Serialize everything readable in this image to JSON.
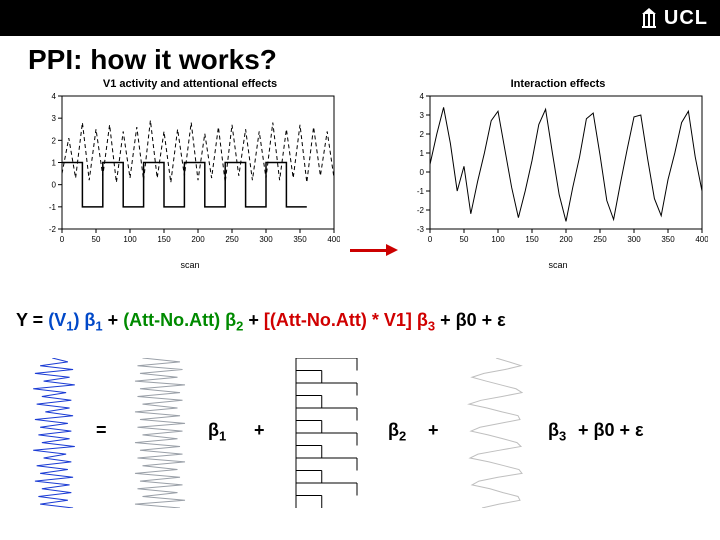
{
  "header": {
    "brand": "UCL"
  },
  "title": "PPI: how it works?",
  "plots": {
    "left": {
      "title": "V1 activity and attentional effects",
      "xlabel": "scan",
      "xlim": [
        0,
        400
      ],
      "ylim": [
        -2,
        4
      ],
      "yticks": [
        -2,
        -1,
        0,
        1,
        2,
        3,
        4
      ],
      "xticks": [
        0,
        50,
        100,
        150,
        200,
        250,
        300,
        350,
        400
      ],
      "series": {
        "dashed_signal": {
          "style": "dashed",
          "color": "#000000",
          "linewidth": 1,
          "points_y": [
            0.5,
            2.1,
            0.3,
            2.8,
            0.2,
            2.5,
            0.4,
            2.7,
            0.1,
            2.4,
            0.3,
            2.6,
            0.2,
            2.9,
            0.3,
            2.4,
            0.1,
            2.5,
            0.4,
            2.8,
            0.2,
            2.3,
            0.3,
            2.6,
            0.1,
            2.7,
            0.4,
            2.5,
            0.2,
            2.4,
            0.3,
            2.8,
            0.2,
            2.5,
            0.3,
            2.7,
            0.1,
            2.6,
            0.4,
            2.4,
            0.3
          ]
        },
        "solid_square": {
          "style": "solid",
          "color": "#000000",
          "linewidth": 1.5,
          "high": 1,
          "low": -1,
          "block_width_scans": 30,
          "blocks": [
            1,
            -1,
            1,
            -1,
            1,
            -1,
            1,
            -1,
            1,
            -1,
            1,
            -1
          ]
        }
      }
    },
    "right": {
      "title": "Interaction effects",
      "xlabel": "scan",
      "xlim": [
        0,
        400
      ],
      "ylim": [
        -3,
        4
      ],
      "yticks": [
        -3,
        -2,
        -1,
        0,
        1,
        2,
        3,
        4
      ],
      "xticks": [
        0,
        50,
        100,
        150,
        200,
        250,
        300,
        350,
        400
      ],
      "series": {
        "signal": {
          "style": "solid",
          "color": "#000000",
          "linewidth": 1,
          "points_y": [
            0.4,
            2.0,
            3.4,
            1.5,
            -1.0,
            0.3,
            -2.2,
            -0.5,
            1.0,
            2.7,
            3.2,
            1.2,
            -0.8,
            -2.4,
            -1.0,
            0.6,
            2.5,
            3.3,
            1.0,
            -1.2,
            -2.6,
            -0.8,
            0.8,
            2.8,
            3.1,
            0.9,
            -1.5,
            -2.5,
            -0.6,
            1.2,
            2.9,
            3.0,
            0.7,
            -1.4,
            -2.3,
            -0.4,
            1.0,
            2.6,
            3.2,
            0.8,
            -1.0
          ]
        }
      }
    }
  },
  "equation": {
    "part1": {
      "text": "Y = ",
      "color": "t-black"
    },
    "part2": {
      "text": "(V",
      "sub": "1",
      "tail": ") β",
      "sub2": "1",
      "color": "t-blue"
    },
    "part3": {
      "text": " + ",
      "color": "t-black"
    },
    "part4": {
      "text": "(Att-No.Att) β",
      "sub": "2",
      "color": "t-green"
    },
    "part5": {
      "text": " + ",
      "color": "t-black"
    },
    "part6": {
      "text": " [(Att-No.Att) * V1] β",
      "sub": "3",
      "color": "t-red"
    },
    "part7": {
      "text": " + β0 + ε",
      "color": "t-black"
    }
  },
  "regressors": {
    "equals": "=",
    "beta1": {
      "text": "β",
      "sub": "1"
    },
    "plus1": "+",
    "beta2": {
      "text": "β",
      "sub": "2"
    },
    "plus2": "+",
    "beta3": {
      "text": "β",
      "sub": "3"
    },
    "tail": " + β0 + ε",
    "y_signal": {
      "color": "#1a3bd4",
      "points_y": [
        0.2,
        1.1,
        -0.5,
        1.4,
        -0.8,
        1.2,
        -0.3,
        1.5,
        -0.9,
        1.0,
        -0.4,
        1.3,
        -0.7,
        1.2,
        -0.2,
        1.4,
        -0.8,
        1.1,
        -0.5,
        1.3,
        -0.6,
        1.2,
        -0.4,
        1.5,
        -0.9,
        1.0,
        -0.3,
        1.3,
        -0.7,
        1.1,
        -0.5,
        1.4,
        -0.8,
        1.2,
        -0.4,
        1.3,
        -0.6,
        1.1,
        -0.5,
        1.4
      ]
    },
    "v1_signal": {
      "color": "#9aa0a8",
      "points_y": [
        0.3,
        1.8,
        0.1,
        1.9,
        0.2,
        1.7,
        0.0,
        2.0,
        0.2,
        1.8,
        0.1,
        1.9,
        0.3,
        1.7,
        0.0,
        1.8,
        0.2,
        2.0,
        0.1,
        1.9,
        0.3,
        1.7,
        0.0,
        1.8,
        0.2,
        1.9,
        0.1,
        2.0,
        0.3,
        1.7,
        0.0,
        1.8,
        0.2,
        1.9,
        0.1,
        1.7,
        0.3,
        2.0,
        0.0,
        1.8
      ]
    },
    "attnoatt_blocks": {
      "color": "#000000",
      "high": 1,
      "low": 0,
      "n_blocks": 12
    },
    "interaction_signal": {
      "color": "#bfbfbf",
      "points_y": [
        0.3,
        1.6,
        2.8,
        1.2,
        -0.9,
        -2.1,
        -0.7,
        0.8,
        2.3,
        2.9,
        0.9,
        -1.2,
        -2.4,
        -0.6,
        0.9,
        2.5,
        2.7,
        0.7,
        -1.3,
        -2.2,
        -0.5,
        1.0,
        2.4,
        2.8,
        0.6,
        -1.5,
        -2.3,
        -0.4,
        1.1,
        2.6,
        2.9,
        0.5,
        -1.4,
        -2.1,
        -0.3,
        1.0,
        2.5,
        2.7,
        0.6,
        -1.1
      ]
    }
  },
  "colors": {
    "background": "#ffffff",
    "header_bg": "#000000",
    "header_fg": "#ffffff",
    "arrow": "#cc0000"
  }
}
